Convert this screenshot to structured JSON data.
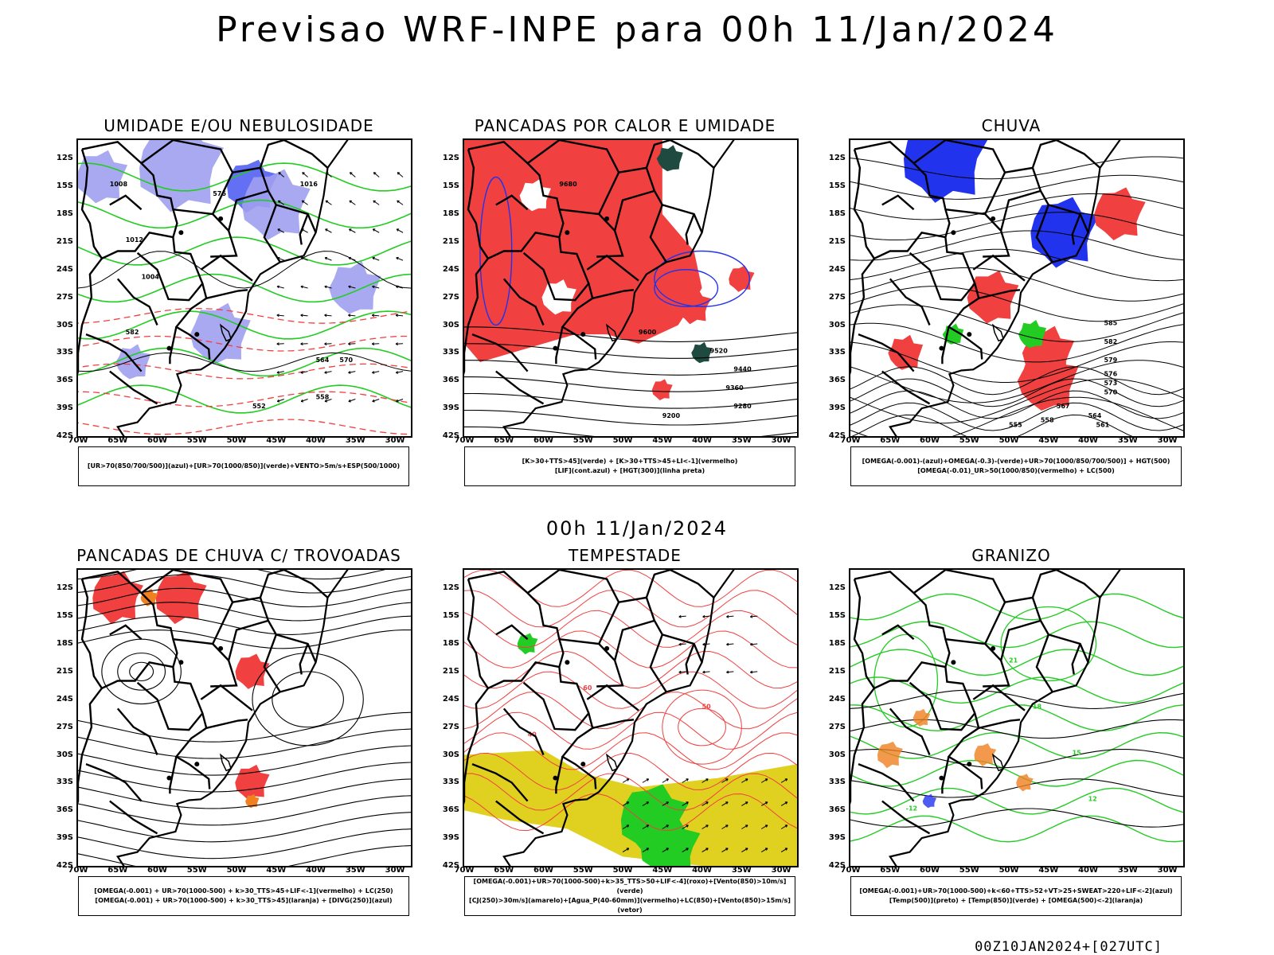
{
  "main_title": "Previsao WRF-INPE  para 00h 11/Jan/2024",
  "mid_date": "00h 11/Jan/2024",
  "footer": "00Z10JAN2024+[027UTC]",
  "lat_labels": [
    "12S",
    "15S",
    "18S",
    "21S",
    "24S",
    "27S",
    "30S",
    "33S",
    "36S",
    "39S",
    "42S"
  ],
  "lon_labels": [
    "70W",
    "65W",
    "60W",
    "55W",
    "50W",
    "45W",
    "40W",
    "35W",
    "30W"
  ],
  "colors": {
    "red": "#f04040",
    "green": "#22cc22",
    "blue": "#2233ee",
    "lavender": "#a0a0f0",
    "orange": "#f08020",
    "yellow": "#e0d020",
    "darkteal": "#1f4a40",
    "black": "#000000"
  },
  "panels": [
    {
      "id": "umidade",
      "title": "UMIDADE E/OU NEBULOSIDADE",
      "legend": [
        "[UR>70(850/700/500)](azul)+[UR>70(1000/850)](verde)+VENTO>5m/s+ESP(500/1000)"
      ],
      "contour_labels": [
        "1008",
        "1012",
        "1016",
        "1004",
        "564",
        "570",
        "576",
        "582",
        "558",
        "552"
      ]
    },
    {
      "id": "pancadas-calor",
      "title": "PANCADAS POR CALOR E UMIDADE",
      "legend": [
        "[K>30+TTS>45](verde) + [K>30+TTS>45+LI<-1](vermelho)",
        "[LIF](cont.azul) + [HGT(300)](linha preta)"
      ],
      "contour_labels": [
        "9680",
        "9600",
        "9520",
        "9440",
        "9360",
        "9280",
        "9200"
      ]
    },
    {
      "id": "chuva",
      "title": "CHUVA",
      "legend": [
        "[OMEGA(-0.001)-(azul)+OMEGA(-0.3)-(verde)+UR>70(1000/850/700/500)] + HGT(500)",
        "[OMEGA(-0.01)_UR>50(1000/850)(vermelho) + LC(500)"
      ],
      "contour_labels": [
        "585",
        "582",
        "579",
        "576",
        "573",
        "570",
        "567",
        "564",
        "561",
        "558",
        "555"
      ]
    },
    {
      "id": "pancadas-trovoadas",
      "title": "PANCADAS DE CHUVA C/ TROVOADAS",
      "legend": [
        "[OMEGA(-0.001) + UR>70(1000-500) + k>30_TTS>45+LIF<-1](vermelho) + LC(250)",
        "[OMEGA(-0.001) + UR>70(1000-500) + k>30_TTS>45](laranja) + [DIVG(250)](azul)"
      ],
      "contour_labels": []
    },
    {
      "id": "tempestade",
      "title": "TEMPESTADE",
      "legend": [
        "[OMEGA(-0.001)+UR>70(1000-500)+k>35_TTS>50+LIF<-4](roxo)+[Vento(850)>10m/s](verde)",
        "[CJ(250)>30m/s](amarelo)+[Agua_P(40-60mm)](vermelho)+LC(850)+[Vento(850)>15m/s](vetor)"
      ],
      "contour_labels": [
        "40",
        "50",
        "60"
      ]
    },
    {
      "id": "granizo",
      "title": "GRANIZO",
      "legend": [
        "[OMEGA(-0.001)+UR>70(1000-500)+k<60+TTS>52+VT>25+SWEAT>220+LIF<-2](azul)",
        "[Temp(500)](preto) + [Temp(850)](verde) + [OMEGA(500)<-2](laranja)"
      ],
      "contour_labels": [
        "21",
        "18",
        "15",
        "12",
        "-12"
      ]
    }
  ]
}
